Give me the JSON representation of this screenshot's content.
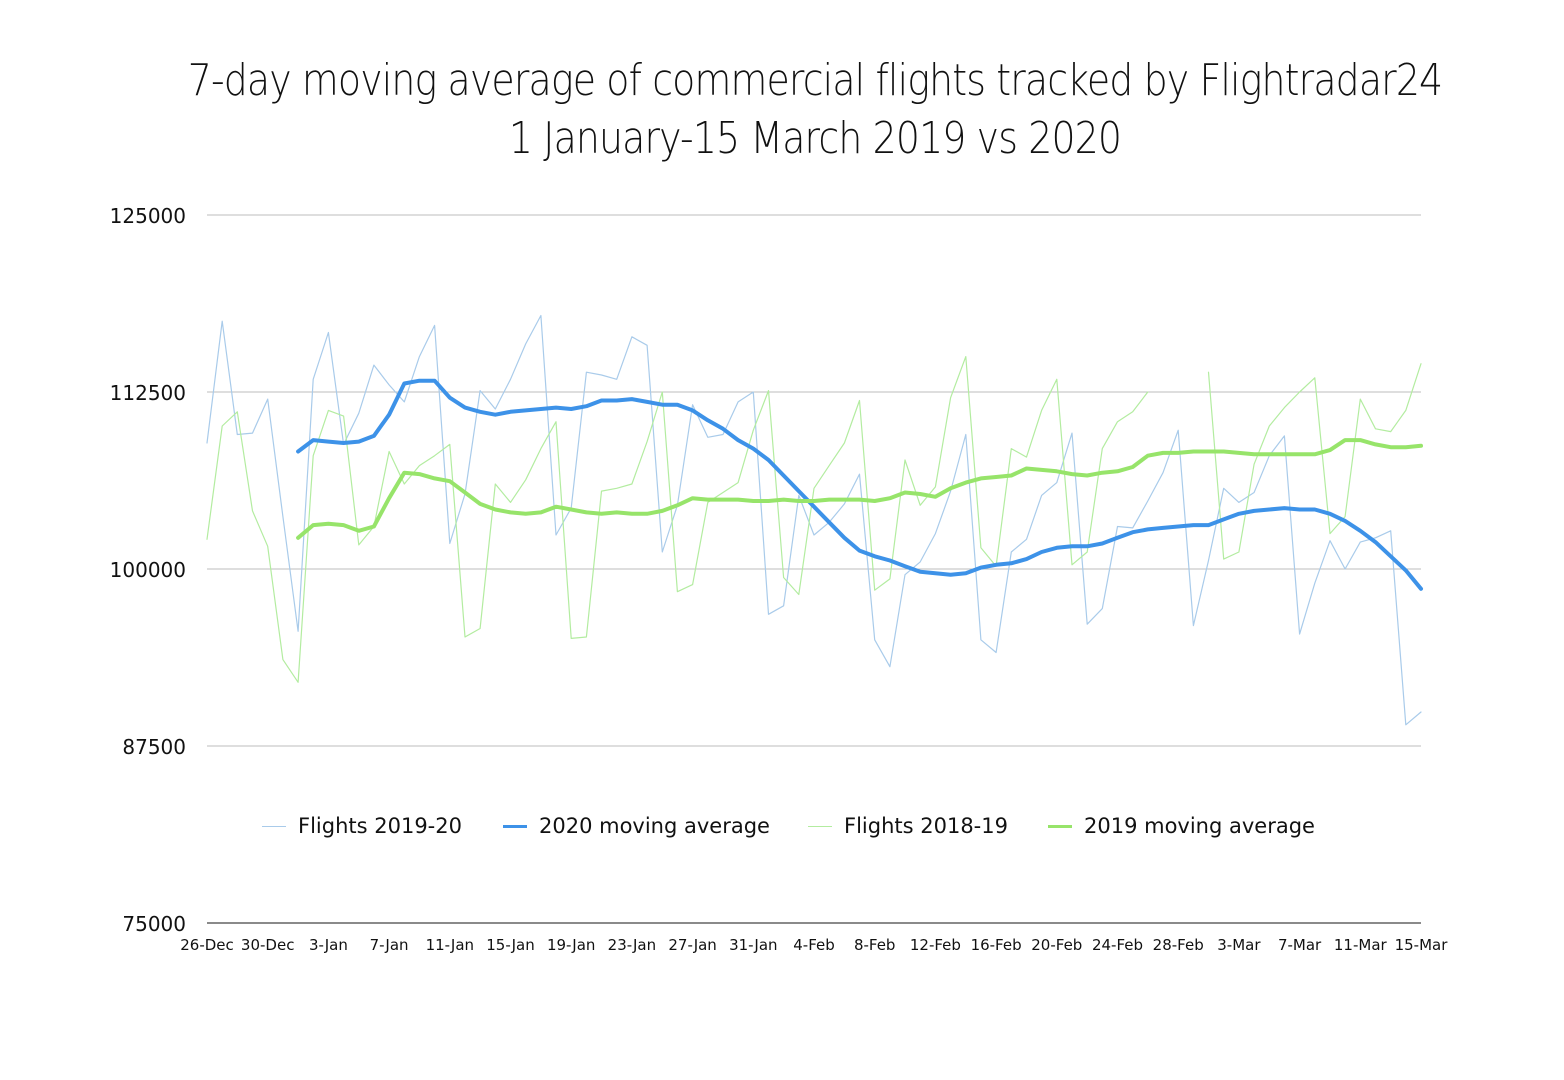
{
  "chart_data": {
    "type": "line",
    "title_lines": [
      "7-day moving average of commercial flights tracked by Flightradar24",
      "1 January-15 March 2019 vs 2020"
    ],
    "xlabel": "",
    "ylabel": "",
    "ylim": [
      75000,
      125000
    ],
    "yticks": [
      75000,
      87500,
      100000,
      112500,
      125000
    ],
    "ytick_labels": [
      "75000",
      "87500",
      "100000",
      "112500",
      "125000"
    ],
    "x_day_offset_labels_note": "",
    "x": [
      "26-Dec",
      "27-Dec",
      "28-Dec",
      "29-Dec",
      "30-Dec",
      "31-Dec",
      "1-Jan",
      "2-Jan",
      "3-Jan",
      "4-Jan",
      "5-Jan",
      "6-Jan",
      "7-Jan",
      "8-Jan",
      "9-Jan",
      "10-Jan",
      "11-Jan",
      "12-Jan",
      "13-Jan",
      "14-Jan",
      "15-Jan",
      "16-Jan",
      "17-Jan",
      "18-Jan",
      "19-Jan",
      "20-Jan",
      "21-Jan",
      "22-Jan",
      "23-Jan",
      "24-Jan",
      "25-Jan",
      "26-Jan",
      "27-Jan",
      "28-Jan",
      "29-Jan",
      "30-Jan",
      "31-Jan",
      "1-Feb",
      "2-Feb",
      "3-Feb",
      "4-Feb",
      "5-Feb",
      "6-Feb",
      "7-Feb",
      "8-Feb",
      "9-Feb",
      "10-Feb",
      "11-Feb",
      "12-Feb",
      "13-Feb",
      "14-Feb",
      "15-Feb",
      "16-Feb",
      "17-Feb",
      "18-Feb",
      "19-Feb",
      "20-Feb",
      "21-Feb",
      "22-Feb",
      "23-Feb",
      "24-Feb",
      "25-Feb",
      "26-Feb",
      "27-Feb",
      "28-Feb",
      "29-Feb",
      "1-Mar",
      "2-Mar",
      "3-Mar",
      "4-Mar",
      "5-Mar",
      "6-Mar",
      "7-Mar",
      "8-Mar",
      "9-Mar",
      "10-Mar",
      "11-Mar",
      "12-Mar",
      "13-Mar",
      "14-Mar",
      "15-Mar"
    ],
    "x_tick_labels": [
      "26-Dec",
      "30-Dec",
      "3-Jan",
      "7-Jan",
      "11-Jan",
      "15-Jan",
      "19-Jan",
      "23-Jan",
      "27-Jan",
      "31-Jan",
      "4-Feb",
      "8-Feb",
      "12-Feb",
      "16-Feb",
      "20-Feb",
      "24-Feb",
      "28-Feb",
      "3-Mar",
      "7-Mar",
      "11-Mar",
      "15-Mar"
    ],
    "series": [
      {
        "name": "Flights 2019-20",
        "color": "#a9cbea",
        "weight": "thin",
        "values": [
          108900,
          117500,
          109500,
          109600,
          112000,
          103700,
          95600,
          113400,
          116700,
          108800,
          111000,
          114400,
          113000,
          111800,
          115000,
          117200,
          101800,
          105300,
          112600,
          111300,
          113400,
          115900,
          117900,
          102400,
          104300,
          113900,
          113700,
          113400,
          116400,
          115800,
          101200,
          104500,
          111600,
          109300,
          109500,
          111800,
          112500,
          96800,
          97400,
          105200,
          102400,
          103300,
          104600,
          106700,
          95000,
          93100,
          99600,
          100500,
          102500,
          105500,
          109500,
          95000,
          94100,
          101200,
          102100,
          105200,
          106100,
          109600,
          96100,
          97200,
          103000,
          102900,
          104800,
          106800,
          109800,
          96000,
          100600,
          105700,
          104700,
          105400,
          108000,
          109400,
          95400,
          99000,
          102000,
          100000,
          101900,
          102200,
          102700,
          89000,
          89900
        ]
      },
      {
        "name": "2020 moving average",
        "color": "#3d92e8",
        "weight": "thick",
        "values": [
          null,
          null,
          null,
          null,
          null,
          null,
          108300,
          109100,
          109000,
          108900,
          109000,
          109400,
          110900,
          113100,
          113300,
          113300,
          112100,
          111400,
          111100,
          110900,
          111100,
          111200,
          111300,
          111400,
          111300,
          111500,
          111900,
          111900,
          112000,
          111800,
          111600,
          111600,
          111200,
          110500,
          109900,
          109100,
          108500,
          107700,
          106600,
          105500,
          104400,
          103300,
          102200,
          101300,
          100900,
          100600,
          100200,
          99800,
          99700,
          99600,
          99700,
          100100,
          100300,
          100400,
          100700,
          101200,
          101500,
          101600,
          101600,
          101800,
          102200,
          102600,
          102800,
          102900,
          103000,
          103100,
          103100,
          103500,
          103900,
          104100,
          104200,
          104300,
          104200,
          104200,
          103900,
          103400,
          102700,
          101900,
          100900,
          99900,
          98600
        ]
      },
      {
        "name": "Flights 2018-19",
        "color": "#b3eca0",
        "weight": "thin",
        "values": [
          102100,
          110100,
          111100,
          104100,
          101600,
          93600,
          92000,
          108000,
          111200,
          110800,
          101700,
          103000,
          108300,
          106000,
          107300,
          108000,
          108800,
          95200,
          95800,
          106000,
          104700,
          106300,
          108500,
          110400,
          95100,
          95200,
          105500,
          105700,
          106000,
          109000,
          112500,
          98400,
          98900,
          104700,
          105400,
          106100,
          109800,
          112600,
          99400,
          98200,
          105700,
          107300,
          108900,
          111900,
          98500,
          99300,
          107700,
          104500,
          105800,
          112100,
          115000,
          101500,
          100200,
          108500,
          107900,
          111200,
          113400,
          100300,
          101200,
          108500,
          110400,
          111100,
          112500,
          null,
          null,
          null,
          113900,
          100700,
          101200,
          107400,
          110100,
          111400,
          112500,
          113500,
          102500,
          103700,
          112000,
          109900,
          109700,
          111200,
          114500
        ]
      },
      {
        "name": "2019 moving average",
        "color": "#97e46a",
        "weight": "thick",
        "values": [
          null,
          null,
          null,
          null,
          null,
          null,
          102200,
          103100,
          103200,
          103100,
          102700,
          103000,
          105000,
          106800,
          106700,
          106400,
          106200,
          105400,
          104600,
          104200,
          104000,
          103900,
          104000,
          104400,
          104200,
          104000,
          103900,
          104000,
          103900,
          103900,
          104100,
          104500,
          105000,
          104900,
          104900,
          104900,
          104800,
          104800,
          104900,
          104800,
          104800,
          104900,
          104900,
          104900,
          104800,
          105000,
          105400,
          105300,
          105100,
          105700,
          106100,
          106400,
          106500,
          106600,
          107100,
          107000,
          106900,
          106700,
          106600,
          106800,
          106900,
          107200,
          108000,
          108200,
          108200,
          108300,
          108300,
          108300,
          108200,
          108100,
          108100,
          108100,
          108100,
          108100,
          108400,
          109100,
          109100,
          108800,
          108600,
          108600,
          108700
        ]
      }
    ],
    "grid": true,
    "legend_position": "bottom-center"
  }
}
